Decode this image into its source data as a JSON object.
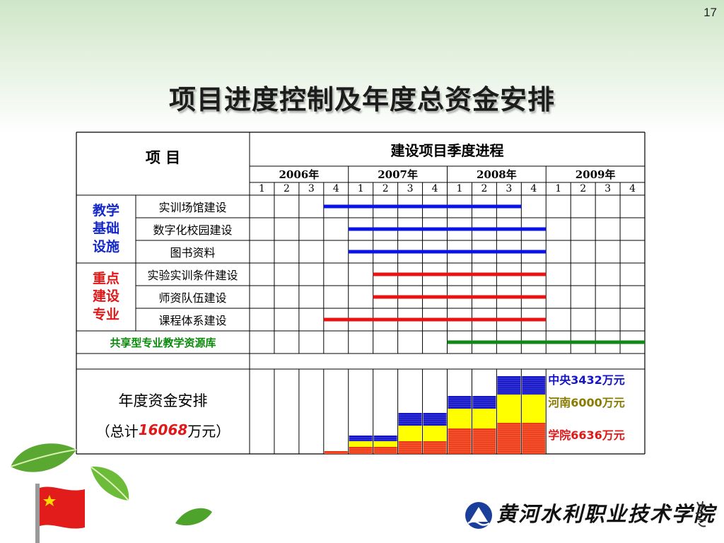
{
  "page": {
    "number": "17",
    "title": "项目进度控制及年度总资金安排"
  },
  "table": {
    "header": {
      "item": "项 目",
      "progress": "建设项目季度进程"
    },
    "years": [
      "2006年",
      "2007年",
      "2008年",
      "2009年"
    ],
    "quarters": [
      "1",
      "2",
      "3",
      "4",
      "1",
      "2",
      "3",
      "4",
      "1",
      "2",
      "3",
      "4",
      "1",
      "2",
      "3",
      "4"
    ],
    "groups": [
      {
        "label": "教学\n基础\n设施",
        "color": "#1428c8"
      },
      {
        "label": "重点\n建设\n专业",
        "color": "#e01818"
      }
    ],
    "rows": [
      {
        "name": "实训场馆建设",
        "start": 3,
        "end": 11,
        "color": "#0a14e6"
      },
      {
        "name": "数字化校园建设",
        "start": 4,
        "end": 12,
        "color": "#0a14e6"
      },
      {
        "name": "图书资料",
        "start": 4,
        "end": 12,
        "color": "#0a14e6"
      },
      {
        "name": "实验实训条件建设",
        "start": 5,
        "end": 12,
        "color": "#e81414"
      },
      {
        "name": "师资队伍建设",
        "start": 5,
        "end": 12,
        "color": "#e81414"
      },
      {
        "name": "课程体系建设",
        "start": 3,
        "end": 12,
        "color": "#e81414"
      }
    ],
    "shared": {
      "name": "共享型专业教学资源库",
      "start": 8,
      "end": 16,
      "color": "#118818",
      "text_color": "#0a8a0a"
    },
    "funding": {
      "label": "年度资金安排",
      "total_prefix": "（总计",
      "total_value": "16068",
      "total_suffix": "万元）",
      "legend": [
        {
          "text": "中央3432万元",
          "color": "#1414c8"
        },
        {
          "text": "河南6000万元",
          "color": "#8a7a00"
        },
        {
          "text": "学院6636万元",
          "color": "#e01818"
        }
      ],
      "colors": {
        "central": "#1414c8",
        "henan": "#ffff00",
        "college": "#ee3a14"
      }
    }
  },
  "footer": {
    "school_name": "黄河水利职业技术学院"
  }
}
